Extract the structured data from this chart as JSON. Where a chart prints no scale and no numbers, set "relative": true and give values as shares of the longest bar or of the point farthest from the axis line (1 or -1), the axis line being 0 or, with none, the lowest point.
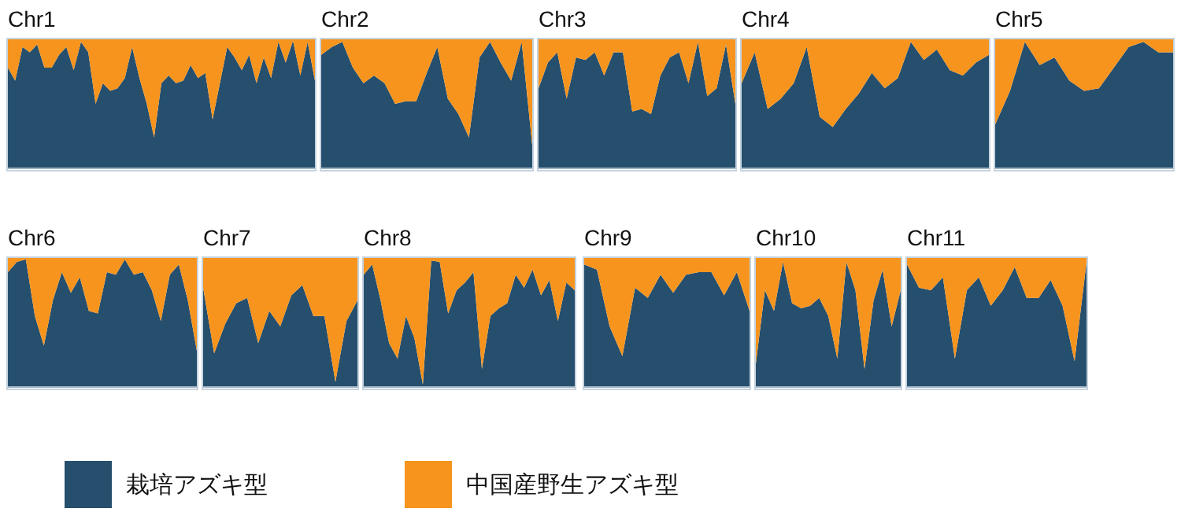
{
  "chart_data": [
    {
      "type": "area",
      "title": "Chr1",
      "stacked": true,
      "relative": true,
      "legend": "bottom",
      "categories": [
        null,
        null,
        null,
        null,
        null,
        null,
        null,
        null,
        null,
        null,
        null,
        null,
        null,
        null,
        null,
        null,
        null,
        null,
        null,
        null,
        null,
        null,
        null,
        null,
        null,
        null,
        null,
        null,
        null,
        null,
        null,
        null,
        null,
        null,
        null,
        null,
        null,
        null,
        null,
        null,
        null,
        null,
        null
      ],
      "series": [
        {
          "name": "栽培アズキ型",
          "color": "#264f6e",
          "values": [
            0.78,
            0.68,
            0.94,
            0.9,
            0.96,
            0.78,
            0.78,
            0.88,
            0.94,
            0.76,
            0.98,
            0.9,
            0.5,
            0.66,
            0.6,
            0.62,
            0.7,
            0.94,
            0.7,
            0.5,
            0.24,
            0.66,
            0.72,
            0.66,
            0.68,
            0.8,
            0.7,
            0.74,
            0.38,
            0.66,
            0.94,
            0.86,
            0.76,
            0.88,
            0.66,
            0.86,
            0.7,
            0.98,
            0.82,
            0.99,
            0.72,
            0.98,
            0.68
          ]
        },
        {
          "name": "中国産野生アズキ型",
          "color": "#f7941d",
          "values": [
            0.22,
            0.32,
            0.06,
            0.1,
            0.04,
            0.22,
            0.22,
            0.12,
            0.06,
            0.24,
            0.02,
            0.1,
            0.5,
            0.34,
            0.4,
            0.38,
            0.3,
            0.06,
            0.3,
            0.5,
            0.76,
            0.34,
            0.28,
            0.34,
            0.32,
            0.2,
            0.3,
            0.26,
            0.62,
            0.34,
            0.06,
            0.14,
            0.24,
            0.12,
            0.34,
            0.14,
            0.3,
            0.02,
            0.18,
            0.01,
            0.28,
            0.02,
            0.32
          ]
        }
      ]
    },
    {
      "type": "area",
      "title": "Chr2",
      "stacked": true,
      "relative": true,
      "categories": [
        null,
        null,
        null,
        null,
        null,
        null,
        null,
        null,
        null,
        null,
        null,
        null,
        null,
        null,
        null,
        null,
        null,
        null,
        null,
        null,
        null
      ],
      "series": [
        {
          "color": "#264f6e",
          "values": [
            0.88,
            0.94,
            0.98,
            0.78,
            0.66,
            0.72,
            0.66,
            0.5,
            0.52,
            0.52,
            0.74,
            0.94,
            0.54,
            0.42,
            0.24,
            0.86,
            0.98,
            0.82,
            0.68,
            0.98,
            0.18
          ]
        },
        {
          "color": "#f7941d",
          "values": [
            0.12,
            0.06,
            0.02,
            0.22,
            0.34,
            0.28,
            0.34,
            0.5,
            0.48,
            0.48,
            0.26,
            0.06,
            0.46,
            0.58,
            0.76,
            0.14,
            0.02,
            0.18,
            0.32,
            0.02,
            0.82
          ]
        }
      ]
    },
    {
      "type": "area",
      "title": "Chr3",
      "stacked": true,
      "relative": true,
      "categories": [
        null,
        null,
        null,
        null,
        null,
        null,
        null,
        null,
        null,
        null,
        null,
        null,
        null,
        null,
        null,
        null,
        null,
        null,
        null,
        null,
        null,
        null
      ],
      "series": [
        {
          "color": "#264f6e",
          "values": [
            0.62,
            0.82,
            0.9,
            0.54,
            0.86,
            0.84,
            0.9,
            0.72,
            0.9,
            0.9,
            0.44,
            0.46,
            0.42,
            0.72,
            0.86,
            0.9,
            0.66,
            0.98,
            0.56,
            0.62,
            0.96,
            0.5
          ]
        },
        {
          "color": "#f7941d",
          "values": [
            0.38,
            0.18,
            0.1,
            0.46,
            0.14,
            0.16,
            0.1,
            0.28,
            0.1,
            0.1,
            0.56,
            0.54,
            0.58,
            0.28,
            0.14,
            0.1,
            0.34,
            0.02,
            0.44,
            0.38,
            0.04,
            0.5
          ]
        }
      ]
    },
    {
      "type": "area",
      "title": "Chr4",
      "stacked": true,
      "relative": true,
      "categories": [
        null,
        null,
        null,
        null,
        null,
        null,
        null,
        null,
        null,
        null,
        null,
        null,
        null,
        null,
        null,
        null,
        null,
        null,
        null,
        null
      ],
      "series": [
        {
          "color": "#264f6e",
          "values": [
            0.66,
            0.9,
            0.46,
            0.54,
            0.66,
            0.94,
            0.4,
            0.32,
            0.46,
            0.58,
            0.74,
            0.62,
            0.7,
            0.98,
            0.84,
            0.92,
            0.76,
            0.72,
            0.82,
            0.88
          ]
        },
        {
          "color": "#f7941d",
          "values": [
            0.34,
            0.1,
            0.54,
            0.46,
            0.34,
            0.06,
            0.6,
            0.68,
            0.54,
            0.42,
            0.26,
            0.38,
            0.3,
            0.02,
            0.16,
            0.08,
            0.24,
            0.28,
            0.18,
            0.12
          ]
        }
      ]
    },
    {
      "type": "area",
      "title": "Chr5",
      "stacked": true,
      "relative": true,
      "categories": [
        null,
        null,
        null,
        null,
        null,
        null,
        null,
        null,
        null,
        null,
        null,
        null,
        null
      ],
      "series": [
        {
          "color": "#264f6e",
          "values": [
            0.34,
            0.6,
            0.98,
            0.8,
            0.86,
            0.68,
            0.6,
            0.62,
            0.78,
            0.94,
            0.98,
            0.9,
            0.9
          ]
        },
        {
          "color": "#f7941d",
          "values": [
            0.66,
            0.4,
            0.02,
            0.2,
            0.14,
            0.32,
            0.4,
            0.38,
            0.22,
            0.06,
            0.02,
            0.1,
            0.1
          ]
        }
      ]
    },
    {
      "type": "area",
      "title": "Chr6",
      "stacked": true,
      "relative": true,
      "categories": [
        null,
        null,
        null,
        null,
        null,
        null,
        null,
        null,
        null,
        null,
        null,
        null,
        null,
        null,
        null,
        null,
        null,
        null,
        null,
        null,
        null,
        null
      ],
      "series": [
        {
          "color": "#264f6e",
          "values": [
            0.89,
            0.97,
            0.99,
            0.55,
            0.32,
            0.67,
            0.89,
            0.73,
            0.85,
            0.59,
            0.57,
            0.89,
            0.87,
            0.99,
            0.87,
            0.89,
            0.75,
            0.51,
            0.87,
            0.95,
            0.67,
            0.28
          ]
        },
        {
          "color": "#f7941d",
          "values": [
            0.11,
            0.03,
            0.01,
            0.45,
            0.68,
            0.33,
            0.11,
            0.27,
            0.15,
            0.41,
            0.43,
            0.11,
            0.13,
            0.01,
            0.13,
            0.11,
            0.25,
            0.49,
            0.13,
            0.05,
            0.33,
            0.72
          ]
        }
      ]
    },
    {
      "type": "area",
      "title": "Chr7",
      "stacked": true,
      "relative": true,
      "categories": [
        null,
        null,
        null,
        null,
        null,
        null,
        null,
        null,
        null,
        null,
        null,
        null,
        null,
        null,
        null
      ],
      "series": [
        {
          "color": "#264f6e",
          "values": [
            0.77,
            0.26,
            0.49,
            0.65,
            0.69,
            0.34,
            0.59,
            0.47,
            0.71,
            0.79,
            0.55,
            0.55,
            0.04,
            0.51,
            0.67
          ]
        },
        {
          "color": "#f7941d",
          "values": [
            0.23,
            0.74,
            0.51,
            0.35,
            0.31,
            0.66,
            0.41,
            0.53,
            0.29,
            0.21,
            0.45,
            0.45,
            0.96,
            0.49,
            0.33
          ]
        }
      ]
    },
    {
      "type": "area",
      "title": "Chr8",
      "stacked": true,
      "relative": true,
      "categories": [
        null,
        null,
        null,
        null,
        null,
        null,
        null,
        null,
        null,
        null,
        null,
        null,
        null,
        null,
        null,
        null,
        null,
        null,
        null,
        null,
        null,
        null,
        null,
        null,
        null,
        null
      ],
      "series": [
        {
          "color": "#264f6e",
          "values": [
            0.87,
            0.95,
            0.67,
            0.34,
            0.22,
            0.55,
            0.38,
            0.02,
            0.98,
            0.97,
            0.57,
            0.75,
            0.81,
            0.89,
            0.14,
            0.55,
            0.61,
            0.65,
            0.87,
            0.77,
            0.91,
            0.71,
            0.83,
            0.51,
            0.81,
            0.75
          ]
        },
        {
          "color": "#f7941d",
          "values": [
            0.13,
            0.05,
            0.33,
            0.66,
            0.78,
            0.45,
            0.62,
            0.98,
            0.02,
            0.03,
            0.43,
            0.25,
            0.19,
            0.11,
            0.86,
            0.45,
            0.39,
            0.35,
            0.13,
            0.23,
            0.09,
            0.29,
            0.17,
            0.49,
            0.19,
            0.25
          ]
        }
      ]
    },
    {
      "type": "area",
      "title": "Chr9",
      "stacked": true,
      "relative": true,
      "categories": [
        null,
        null,
        null,
        null,
        null,
        null,
        null,
        null,
        null,
        null,
        null,
        null,
        null,
        null
      ],
      "series": [
        {
          "color": "#264f6e",
          "values": [
            0.95,
            0.91,
            0.47,
            0.24,
            0.77,
            0.69,
            0.87,
            0.73,
            0.87,
            0.89,
            0.89,
            0.71,
            0.89,
            0.59
          ]
        },
        {
          "color": "#f7941d",
          "values": [
            0.05,
            0.09,
            0.53,
            0.76,
            0.23,
            0.31,
            0.13,
            0.27,
            0.13,
            0.11,
            0.11,
            0.29,
            0.11,
            0.41
          ]
        }
      ]
    },
    {
      "type": "area",
      "title": "Chr10",
      "stacked": true,
      "relative": true,
      "categories": [
        null,
        null,
        null,
        null,
        null,
        null,
        null,
        null,
        null,
        null,
        null,
        null,
        null,
        null,
        null,
        null,
        null
      ],
      "series": [
        {
          "color": "#264f6e",
          "values": [
            0.18,
            0.75,
            0.59,
            0.97,
            0.65,
            0.61,
            0.63,
            0.69,
            0.55,
            0.22,
            0.97,
            0.75,
            0.14,
            0.67,
            0.91,
            0.47,
            0.75
          ]
        },
        {
          "color": "#f7941d",
          "values": [
            0.82,
            0.25,
            0.41,
            0.03,
            0.35,
            0.39,
            0.37,
            0.31,
            0.45,
            0.78,
            0.03,
            0.25,
            0.86,
            0.33,
            0.09,
            0.53,
            0.25
          ]
        }
      ]
    },
    {
      "type": "area",
      "title": "Chr11",
      "stacked": true,
      "relative": true,
      "categories": [
        null,
        null,
        null,
        null,
        null,
        null,
        null,
        null,
        null,
        null,
        null,
        null,
        null,
        null,
        null,
        null
      ],
      "series": [
        {
          "color": "#264f6e",
          "values": [
            0.95,
            0.77,
            0.75,
            0.85,
            0.22,
            0.75,
            0.85,
            0.63,
            0.75,
            0.93,
            0.69,
            0.69,
            0.83,
            0.63,
            0.2,
            0.97
          ]
        },
        {
          "color": "#f7941d",
          "values": [
            0.05,
            0.23,
            0.25,
            0.15,
            0.78,
            0.25,
            0.15,
            0.37,
            0.25,
            0.07,
            0.31,
            0.31,
            0.17,
            0.37,
            0.8,
            0.03
          ]
        }
      ]
    }
  ]
}
